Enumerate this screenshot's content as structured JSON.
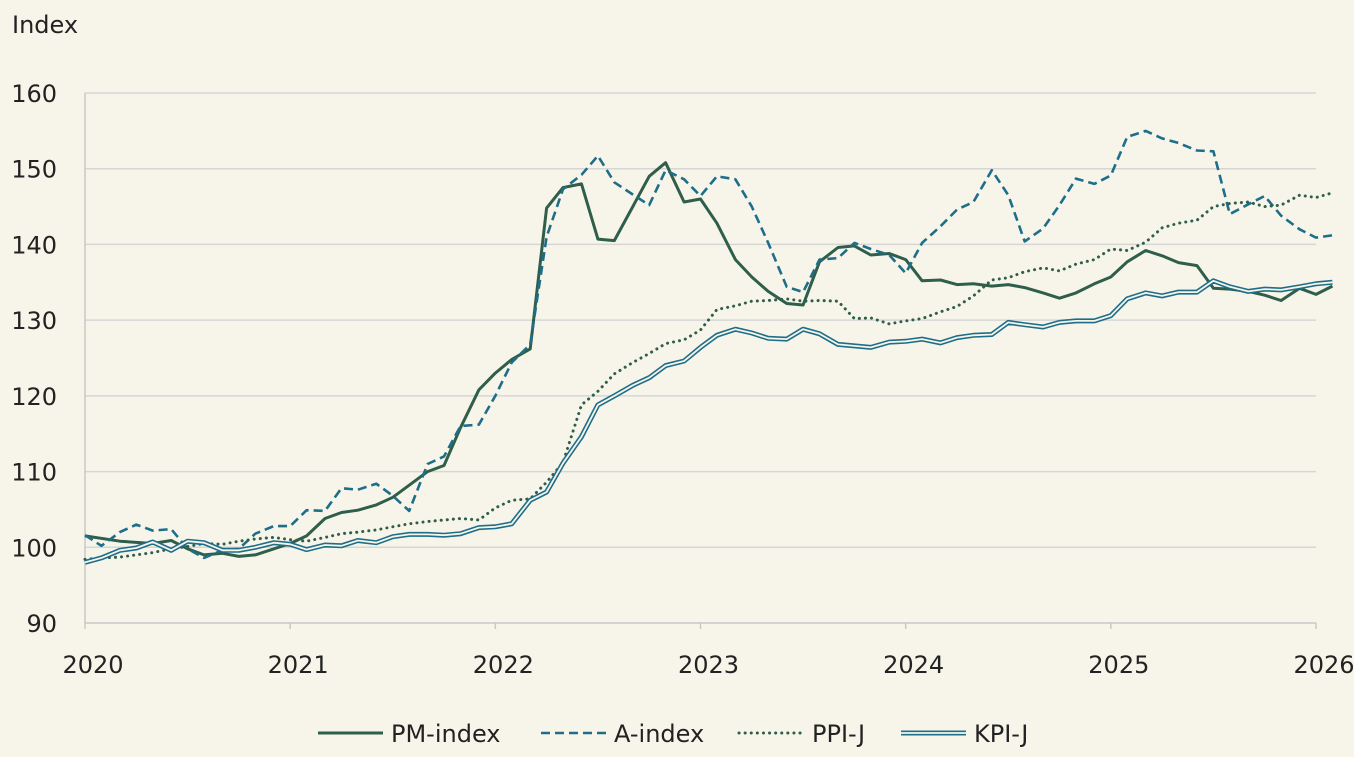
{
  "chart_data": {
    "type": "line",
    "ylabel": "Index",
    "xlabel": "",
    "ylim": [
      90,
      160
    ],
    "xlim": [
      2020,
      2026
    ],
    "y_ticks": [
      "90",
      "100",
      "110",
      "120",
      "130",
      "140",
      "150",
      "160"
    ],
    "x_ticks": [
      "2020",
      "2021",
      "2022",
      "2023",
      "2024",
      "2025",
      "2026"
    ],
    "grid": "horizontal",
    "legend_position": "bottom-center",
    "series": [
      {
        "name": "PM-index",
        "style": "solid",
        "color": "#2f5e4a",
        "points": [
          [
            2020.0,
            101.5
          ],
          [
            2020.17,
            100.8
          ],
          [
            2020.33,
            100.5
          ],
          [
            2020.42,
            100.9
          ],
          [
            2020.5,
            99.8
          ],
          [
            2020.58,
            99.0
          ],
          [
            2020.67,
            99.2
          ],
          [
            2020.75,
            98.8
          ],
          [
            2020.83,
            99.0
          ],
          [
            2021.0,
            100.5
          ],
          [
            2021.08,
            101.5
          ],
          [
            2021.17,
            103.8
          ],
          [
            2021.25,
            104.6
          ],
          [
            2021.33,
            104.9
          ],
          [
            2021.42,
            105.6
          ],
          [
            2021.5,
            106.6
          ],
          [
            2021.58,
            108.2
          ],
          [
            2021.67,
            110.0
          ],
          [
            2021.75,
            110.8
          ],
          [
            2021.83,
            115.8
          ],
          [
            2021.92,
            120.8
          ],
          [
            2022.0,
            123.0
          ],
          [
            2022.08,
            124.8
          ],
          [
            2022.17,
            126.2
          ],
          [
            2022.25,
            144.8
          ],
          [
            2022.33,
            147.5
          ],
          [
            2022.42,
            148.0
          ],
          [
            2022.5,
            140.7
          ],
          [
            2022.58,
            140.5
          ],
          [
            2022.67,
            145.0
          ],
          [
            2022.75,
            149.0
          ],
          [
            2022.83,
            150.8
          ],
          [
            2022.92,
            145.6
          ],
          [
            2023.0,
            146.0
          ],
          [
            2023.08,
            142.8
          ],
          [
            2023.17,
            138.0
          ],
          [
            2023.25,
            135.7
          ],
          [
            2023.33,
            133.8
          ],
          [
            2023.42,
            132.2
          ],
          [
            2023.5,
            132.0
          ],
          [
            2023.58,
            137.7
          ],
          [
            2023.67,
            139.6
          ],
          [
            2023.75,
            139.8
          ],
          [
            2023.83,
            138.6
          ],
          [
            2023.92,
            138.8
          ],
          [
            2024.0,
            138.0
          ],
          [
            2024.08,
            135.2
          ],
          [
            2024.17,
            135.3
          ],
          [
            2024.25,
            134.7
          ],
          [
            2024.33,
            134.8
          ],
          [
            2024.42,
            134.5
          ],
          [
            2024.5,
            134.7
          ],
          [
            2024.58,
            134.3
          ],
          [
            2024.67,
            133.6
          ],
          [
            2024.75,
            132.9
          ],
          [
            2024.83,
            133.6
          ],
          [
            2024.92,
            134.8
          ],
          [
            2025.0,
            135.7
          ],
          [
            2025.08,
            137.7
          ],
          [
            2025.17,
            139.2
          ],
          [
            2025.25,
            138.5
          ],
          [
            2025.33,
            137.6
          ],
          [
            2025.42,
            137.2
          ],
          [
            2025.5,
            134.2
          ],
          [
            2025.58,
            134.1
          ],
          [
            2025.67,
            133.8
          ],
          [
            2025.75,
            133.3
          ],
          [
            2025.83,
            132.6
          ],
          [
            2025.92,
            134.2
          ],
          [
            2026.0,
            133.4
          ],
          [
            2026.08,
            134.5
          ]
        ]
      },
      {
        "name": "A-index",
        "style": "dashed",
        "color": "#1e6e8a",
        "points": [
          [
            2020.0,
            101.6
          ],
          [
            2020.08,
            100.2
          ],
          [
            2020.17,
            102.0
          ],
          [
            2020.25,
            103.0
          ],
          [
            2020.33,
            102.2
          ],
          [
            2020.42,
            102.4
          ],
          [
            2020.5,
            99.8
          ],
          [
            2020.58,
            98.6
          ],
          [
            2020.67,
            99.6
          ],
          [
            2020.75,
            99.8
          ],
          [
            2020.83,
            101.8
          ],
          [
            2020.92,
            102.8
          ],
          [
            2021.0,
            102.8
          ],
          [
            2021.08,
            104.9
          ],
          [
            2021.17,
            104.8
          ],
          [
            2021.25,
            107.8
          ],
          [
            2021.33,
            107.6
          ],
          [
            2021.42,
            108.4
          ],
          [
            2021.5,
            106.8
          ],
          [
            2021.58,
            104.8
          ],
          [
            2021.67,
            111.0
          ],
          [
            2021.75,
            112.0
          ],
          [
            2021.83,
            116.0
          ],
          [
            2021.92,
            116.2
          ],
          [
            2022.0,
            120.0
          ],
          [
            2022.08,
            124.4
          ],
          [
            2022.17,
            126.8
          ],
          [
            2022.25,
            141.0
          ],
          [
            2022.33,
            147.3
          ],
          [
            2022.42,
            149.2
          ],
          [
            2022.5,
            151.7
          ],
          [
            2022.58,
            148.2
          ],
          [
            2022.67,
            146.6
          ],
          [
            2022.75,
            145.2
          ],
          [
            2022.83,
            149.8
          ],
          [
            2022.92,
            148.6
          ],
          [
            2023.0,
            146.4
          ],
          [
            2023.08,
            149.0
          ],
          [
            2023.17,
            148.6
          ],
          [
            2023.25,
            145.0
          ],
          [
            2023.33,
            140.2
          ],
          [
            2023.42,
            134.4
          ],
          [
            2023.5,
            133.7
          ],
          [
            2023.58,
            138.0
          ],
          [
            2023.67,
            138.2
          ],
          [
            2023.75,
            140.2
          ],
          [
            2023.83,
            139.4
          ],
          [
            2023.92,
            138.6
          ],
          [
            2024.0,
            136.2
          ],
          [
            2024.08,
            140.2
          ],
          [
            2024.17,
            142.4
          ],
          [
            2024.25,
            144.6
          ],
          [
            2024.33,
            145.6
          ],
          [
            2024.42,
            149.8
          ],
          [
            2024.5,
            146.5
          ],
          [
            2024.58,
            140.4
          ],
          [
            2024.67,
            142.1
          ],
          [
            2024.75,
            145.2
          ],
          [
            2024.83,
            148.7
          ],
          [
            2024.92,
            148.0
          ],
          [
            2025.0,
            149.1
          ],
          [
            2025.08,
            154.2
          ],
          [
            2025.17,
            155.0
          ],
          [
            2025.25,
            154.0
          ],
          [
            2025.33,
            153.4
          ],
          [
            2025.42,
            152.4
          ],
          [
            2025.5,
            152.3
          ],
          [
            2025.58,
            144.0
          ],
          [
            2025.67,
            145.3
          ],
          [
            2025.75,
            146.4
          ],
          [
            2025.83,
            143.8
          ],
          [
            2025.92,
            142.0
          ],
          [
            2026.0,
            140.9
          ],
          [
            2026.08,
            141.2
          ]
        ]
      },
      {
        "name": "PPI-J",
        "style": "dotted",
        "color": "#2f5e4a",
        "points": [
          [
            2020.0,
            98.4
          ],
          [
            2020.08,
            98.6
          ],
          [
            2020.17,
            98.7
          ],
          [
            2020.25,
            99.0
          ],
          [
            2020.33,
            99.3
          ],
          [
            2020.42,
            99.8
          ],
          [
            2020.5,
            100.1
          ],
          [
            2020.58,
            100.5
          ],
          [
            2020.67,
            100.4
          ],
          [
            2020.75,
            100.8
          ],
          [
            2020.83,
            101.1
          ],
          [
            2020.92,
            101.3
          ],
          [
            2021.0,
            101.0
          ],
          [
            2021.08,
            100.8
          ],
          [
            2021.17,
            101.3
          ],
          [
            2021.25,
            101.8
          ],
          [
            2021.33,
            102.0
          ],
          [
            2021.42,
            102.3
          ],
          [
            2021.5,
            102.7
          ],
          [
            2021.58,
            103.1
          ],
          [
            2021.67,
            103.4
          ],
          [
            2021.75,
            103.6
          ],
          [
            2021.83,
            103.8
          ],
          [
            2021.92,
            103.6
          ],
          [
            2022.0,
            105.2
          ],
          [
            2022.08,
            106.2
          ],
          [
            2022.17,
            106.4
          ],
          [
            2022.25,
            108.6
          ],
          [
            2022.33,
            111.2
          ],
          [
            2022.42,
            118.8
          ],
          [
            2022.5,
            120.6
          ],
          [
            2022.58,
            122.9
          ],
          [
            2022.67,
            124.4
          ],
          [
            2022.75,
            125.6
          ],
          [
            2022.83,
            126.9
          ],
          [
            2022.92,
            127.4
          ],
          [
            2023.0,
            128.7
          ],
          [
            2023.08,
            131.4
          ],
          [
            2023.17,
            131.9
          ],
          [
            2023.25,
            132.5
          ],
          [
            2023.33,
            132.6
          ],
          [
            2023.42,
            132.8
          ],
          [
            2023.5,
            132.5
          ],
          [
            2023.58,
            132.6
          ],
          [
            2023.67,
            132.5
          ],
          [
            2023.75,
            130.2
          ],
          [
            2023.83,
            130.3
          ],
          [
            2023.92,
            129.5
          ],
          [
            2024.0,
            129.9
          ],
          [
            2024.08,
            130.2
          ],
          [
            2024.17,
            131.1
          ],
          [
            2024.25,
            131.8
          ],
          [
            2024.33,
            133.2
          ],
          [
            2024.42,
            135.3
          ],
          [
            2024.5,
            135.6
          ],
          [
            2024.58,
            136.4
          ],
          [
            2024.67,
            136.9
          ],
          [
            2024.75,
            136.5
          ],
          [
            2024.83,
            137.4
          ],
          [
            2024.92,
            138.0
          ],
          [
            2025.0,
            139.4
          ],
          [
            2025.08,
            139.2
          ],
          [
            2025.17,
            140.3
          ],
          [
            2025.25,
            142.2
          ],
          [
            2025.33,
            142.8
          ],
          [
            2025.42,
            143.2
          ],
          [
            2025.5,
            145.0
          ],
          [
            2025.58,
            145.4
          ],
          [
            2025.67,
            145.6
          ],
          [
            2025.75,
            145.0
          ],
          [
            2025.83,
            145.2
          ],
          [
            2025.92,
            146.5
          ],
          [
            2026.0,
            146.2
          ],
          [
            2026.08,
            146.8
          ]
        ]
      },
      {
        "name": "KPI-J",
        "style": "double",
        "color": "#1e6e8a",
        "points": [
          [
            2020.0,
            98.0
          ],
          [
            2020.08,
            98.6
          ],
          [
            2020.17,
            99.6
          ],
          [
            2020.25,
            99.9
          ],
          [
            2020.33,
            100.7
          ],
          [
            2020.42,
            99.6
          ],
          [
            2020.5,
            100.8
          ],
          [
            2020.58,
            100.6
          ],
          [
            2020.67,
            99.6
          ],
          [
            2020.75,
            99.6
          ],
          [
            2020.83,
            100.0
          ],
          [
            2020.92,
            100.6
          ],
          [
            2021.0,
            100.4
          ],
          [
            2021.08,
            99.7
          ],
          [
            2021.17,
            100.3
          ],
          [
            2021.25,
            100.2
          ],
          [
            2021.33,
            100.9
          ],
          [
            2021.42,
            100.6
          ],
          [
            2021.5,
            101.4
          ],
          [
            2021.58,
            101.7
          ],
          [
            2021.67,
            101.7
          ],
          [
            2021.75,
            101.6
          ],
          [
            2021.83,
            101.8
          ],
          [
            2021.92,
            102.6
          ],
          [
            2022.0,
            102.7
          ],
          [
            2022.08,
            103.1
          ],
          [
            2022.17,
            106.2
          ],
          [
            2022.25,
            107.3
          ],
          [
            2022.33,
            111.1
          ],
          [
            2022.42,
            114.6
          ],
          [
            2022.5,
            118.8
          ],
          [
            2022.58,
            120.0
          ],
          [
            2022.67,
            121.4
          ],
          [
            2022.75,
            122.4
          ],
          [
            2022.83,
            124.0
          ],
          [
            2022.92,
            124.6
          ],
          [
            2023.0,
            126.4
          ],
          [
            2023.08,
            128.0
          ],
          [
            2023.17,
            128.8
          ],
          [
            2023.25,
            128.3
          ],
          [
            2023.33,
            127.6
          ],
          [
            2023.42,
            127.5
          ],
          [
            2023.5,
            128.8
          ],
          [
            2023.58,
            128.2
          ],
          [
            2023.67,
            126.8
          ],
          [
            2023.75,
            126.6
          ],
          [
            2023.83,
            126.4
          ],
          [
            2023.92,
            127.1
          ],
          [
            2024.0,
            127.2
          ],
          [
            2024.08,
            127.5
          ],
          [
            2024.17,
            127.0
          ],
          [
            2024.25,
            127.7
          ],
          [
            2024.33,
            128.0
          ],
          [
            2024.42,
            128.1
          ],
          [
            2024.5,
            129.7
          ],
          [
            2024.58,
            129.4
          ],
          [
            2024.67,
            129.1
          ],
          [
            2024.75,
            129.7
          ],
          [
            2024.83,
            129.9
          ],
          [
            2024.92,
            129.9
          ],
          [
            2025.0,
            130.6
          ],
          [
            2025.08,
            132.8
          ],
          [
            2025.17,
            133.6
          ],
          [
            2025.25,
            133.2
          ],
          [
            2025.33,
            133.7
          ],
          [
            2025.42,
            133.7
          ],
          [
            2025.5,
            135.2
          ],
          [
            2025.58,
            134.4
          ],
          [
            2025.67,
            133.8
          ],
          [
            2025.75,
            134.1
          ],
          [
            2025.83,
            134.0
          ],
          [
            2025.92,
            134.4
          ],
          [
            2026.0,
            134.8
          ],
          [
            2026.08,
            135.0
          ]
        ]
      }
    ]
  }
}
